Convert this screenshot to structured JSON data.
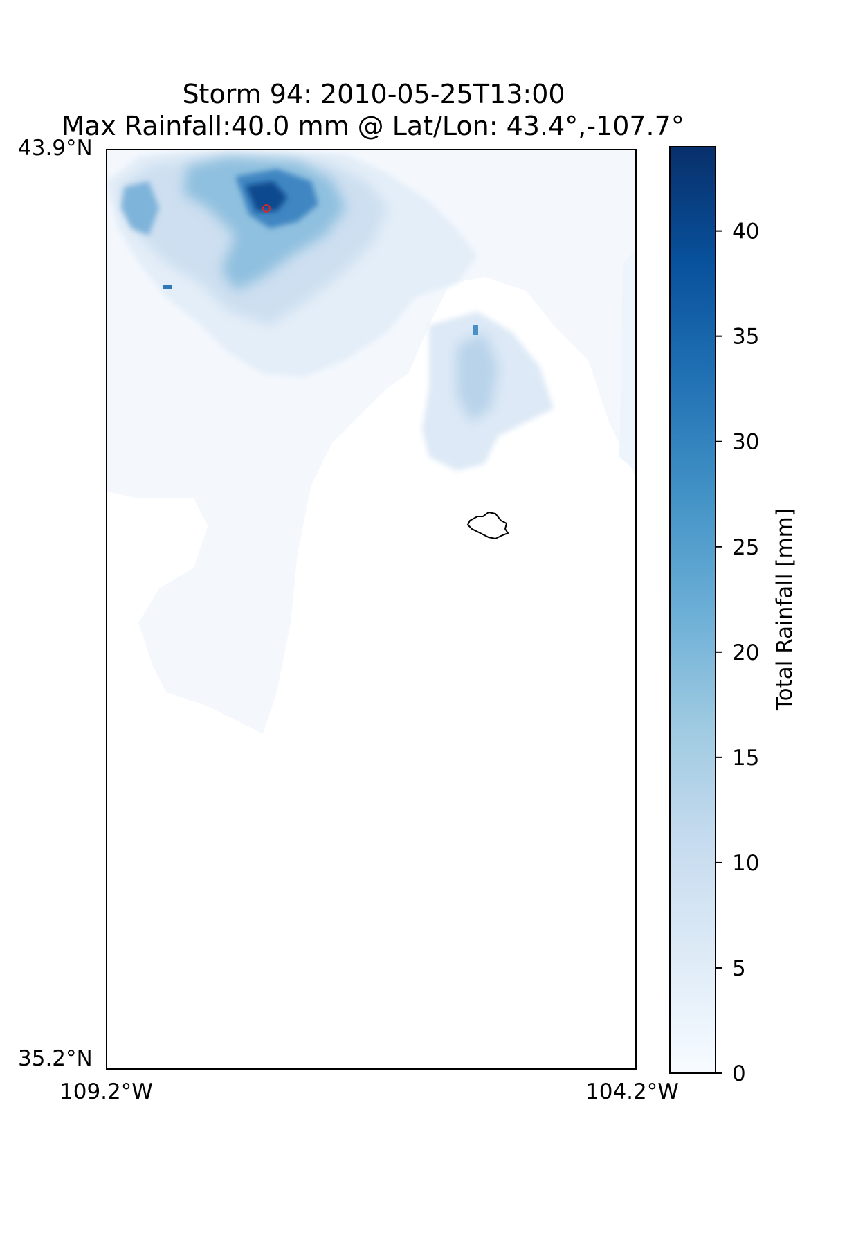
{
  "title": {
    "line1": "Storm 94: 2010-05-25T13:00",
    "line2": "Max Rainfall:40.0 mm @ Lat/Lon:  43.4°,-107.7°"
  },
  "map": {
    "lat_top_label": "43.9°N",
    "lat_bottom_label": "35.2°N",
    "lon_left_label": "109.2°W",
    "lon_right_label": "104.2°W",
    "lat_range": [
      35.2,
      43.9
    ],
    "lon_range": [
      -109.2,
      -104.2
    ],
    "max_point": {
      "lat": 43.4,
      "lon": -107.7,
      "value_mm": 40.0,
      "marker_color": "#d62728"
    },
    "colormap": "Blues"
  },
  "colorbar": {
    "label": "Total Rainfall [mm]",
    "min": 0,
    "max": 44,
    "ticks": [
      "0",
      "5",
      "10",
      "15",
      "20",
      "25",
      "30",
      "35",
      "40"
    ],
    "tick_values": [
      0,
      5,
      10,
      15,
      20,
      25,
      30,
      35,
      40
    ],
    "colors": [
      "#f7fbff",
      "#deebf7",
      "#c6dbef",
      "#9ecae1",
      "#6baed6",
      "#4292c6",
      "#2171b5",
      "#08519c",
      "#08306b"
    ]
  }
}
